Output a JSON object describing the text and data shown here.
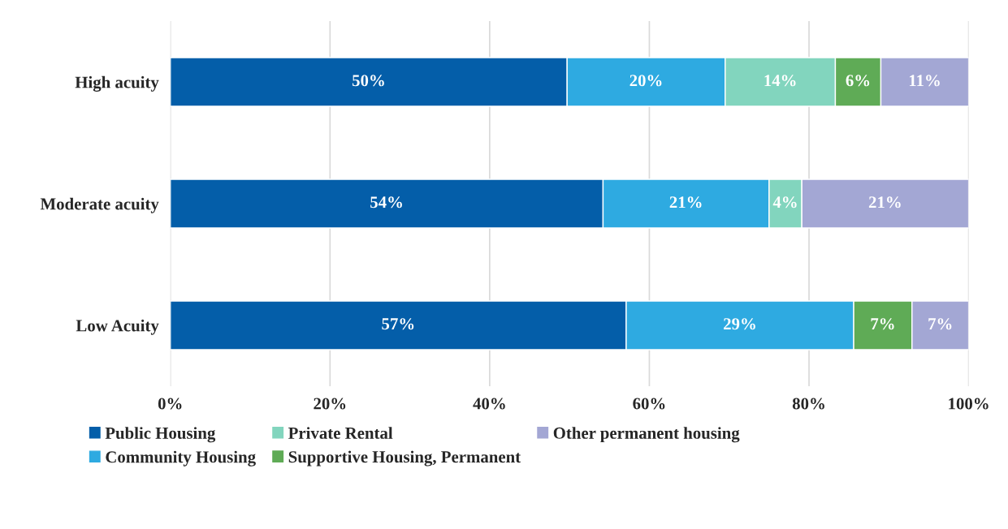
{
  "chart_data": {
    "type": "bar",
    "orientation": "horizontal",
    "stacked": true,
    "categories": [
      "High acuity",
      "Moderate acuity",
      "Low Acuity"
    ],
    "series": [
      {
        "name": "Public Housing",
        "color": "#045ea9",
        "values": [
          49.7,
          54.2,
          57.1
        ],
        "value_labels": [
          "50%",
          "54%",
          "57%"
        ]
      },
      {
        "name": "Community Housing",
        "color": "#2eaae1",
        "values": [
          19.8,
          20.8,
          28.5
        ],
        "value_labels": [
          "20%",
          "21%",
          "29%"
        ]
      },
      {
        "name": "Private Rental",
        "color": "#82d5be",
        "values": [
          13.8,
          4.1,
          null
        ],
        "value_labels": [
          "14%",
          "4%",
          null
        ]
      },
      {
        "name": "Supportive Housing, Permanent",
        "color": "#5fab56",
        "values": [
          5.7,
          null,
          7.3
        ],
        "value_labels": [
          "6%",
          null,
          "7%"
        ]
      },
      {
        "name": "Other permanent housing",
        "color": "#a3a7d4",
        "values": [
          11.0,
          20.9,
          7.1
        ],
        "value_labels": [
          "11%",
          "21%",
          "7%"
        ]
      }
    ],
    "xlim": [
      0,
      100
    ],
    "xticks": [
      {
        "value": 0,
        "label": "0%"
      },
      {
        "value": 20,
        "label": "20%"
      },
      {
        "value": 40,
        "label": "40%"
      },
      {
        "value": 60,
        "label": "60%"
      },
      {
        "value": 80,
        "label": "80%"
      },
      {
        "value": 100,
        "label": "100%"
      }
    ],
    "grid": "x",
    "legend": "bottom"
  }
}
